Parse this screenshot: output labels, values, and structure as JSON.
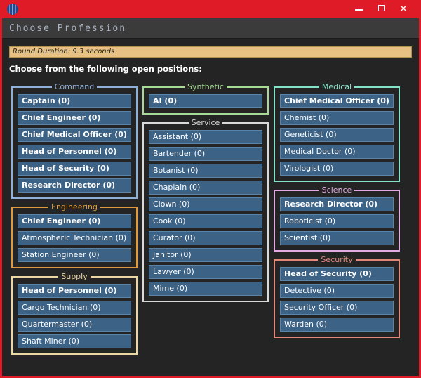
{
  "titlebar": {
    "close_glyph": "✕"
  },
  "header": {
    "title": "Choose Profession"
  },
  "banner": {
    "text": "Round Duration: 9.3 seconds"
  },
  "prompt": "Choose from the following open positions:",
  "colors": {
    "titlebar_red": "#e01b28",
    "header_bg": "#3b3b3b",
    "header_text": "#a9b4c2",
    "content_bg": "#242424",
    "banner_bg": "#e7c183",
    "banner_text": "#23201a",
    "button_bg": "#3c6285",
    "button_border": "#5b84a9",
    "button_text": "#ffffff"
  },
  "columns": [
    {
      "groups": [
        {
          "name": "Command",
          "color": "#8fb1d9",
          "jobs": [
            {
              "label": "Captain (0)",
              "bold": true
            },
            {
              "label": "Chief Engineer (0)",
              "bold": true
            },
            {
              "label": "Chief Medical Officer (0)",
              "bold": true
            },
            {
              "label": "Head of Personnel (0)",
              "bold": true
            },
            {
              "label": "Head of Security (0)",
              "bold": true
            },
            {
              "label": "Research Director (0)",
              "bold": true
            }
          ]
        },
        {
          "name": "Engineering",
          "color": "#de9a3c",
          "jobs": [
            {
              "label": "Chief Engineer (0)",
              "bold": true
            },
            {
              "label": "Atmospheric Technician (0)",
              "bold": false
            },
            {
              "label": "Station Engineer (0)",
              "bold": false
            }
          ]
        },
        {
          "name": "Supply",
          "color": "#ead7a4",
          "jobs": [
            {
              "label": "Head of Personnel (0)",
              "bold": true
            },
            {
              "label": "Cargo Technician (0)",
              "bold": false
            },
            {
              "label": "Quartermaster (0)",
              "bold": false
            },
            {
              "label": "Shaft Miner (0)",
              "bold": false
            }
          ]
        }
      ]
    },
    {
      "groups": [
        {
          "name": "Synthetic",
          "color": "#a6db96",
          "jobs": [
            {
              "label": "AI (0)",
              "bold": true
            }
          ]
        },
        {
          "name": "Service",
          "color": "#d9d9d9",
          "jobs": [
            {
              "label": "Assistant (0)",
              "bold": false
            },
            {
              "label": "Bartender (0)",
              "bold": false
            },
            {
              "label": "Botanist (0)",
              "bold": false
            },
            {
              "label": "Chaplain (0)",
              "bold": false
            },
            {
              "label": "Clown (0)",
              "bold": false
            },
            {
              "label": "Cook (0)",
              "bold": false
            },
            {
              "label": "Curator (0)",
              "bold": false
            },
            {
              "label": "Janitor (0)",
              "bold": false
            },
            {
              "label": "Lawyer (0)",
              "bold": false
            },
            {
              "label": "Mime (0)",
              "bold": false
            }
          ]
        }
      ]
    },
    {
      "groups": [
        {
          "name": "Medical",
          "color": "#82e3c6",
          "jobs": [
            {
              "label": "Chief Medical Officer (0)",
              "bold": true
            },
            {
              "label": "Chemist (0)",
              "bold": false
            },
            {
              "label": "Geneticist (0)",
              "bold": false
            },
            {
              "label": "Medical Doctor (0)",
              "bold": false
            },
            {
              "label": "Virologist (0)",
              "bold": false
            }
          ]
        },
        {
          "name": "Science",
          "color": "#e2abe1",
          "jobs": [
            {
              "label": "Research Director (0)",
              "bold": true
            },
            {
              "label": "Roboticist (0)",
              "bold": false
            },
            {
              "label": "Scientist (0)",
              "bold": false
            }
          ]
        },
        {
          "name": "Security",
          "color": "#e4887b",
          "jobs": [
            {
              "label": "Head of Security (0)",
              "bold": true
            },
            {
              "label": "Detective (0)",
              "bold": false
            },
            {
              "label": "Security Officer (0)",
              "bold": false
            },
            {
              "label": "Warden (0)",
              "bold": false
            }
          ]
        }
      ]
    }
  ]
}
